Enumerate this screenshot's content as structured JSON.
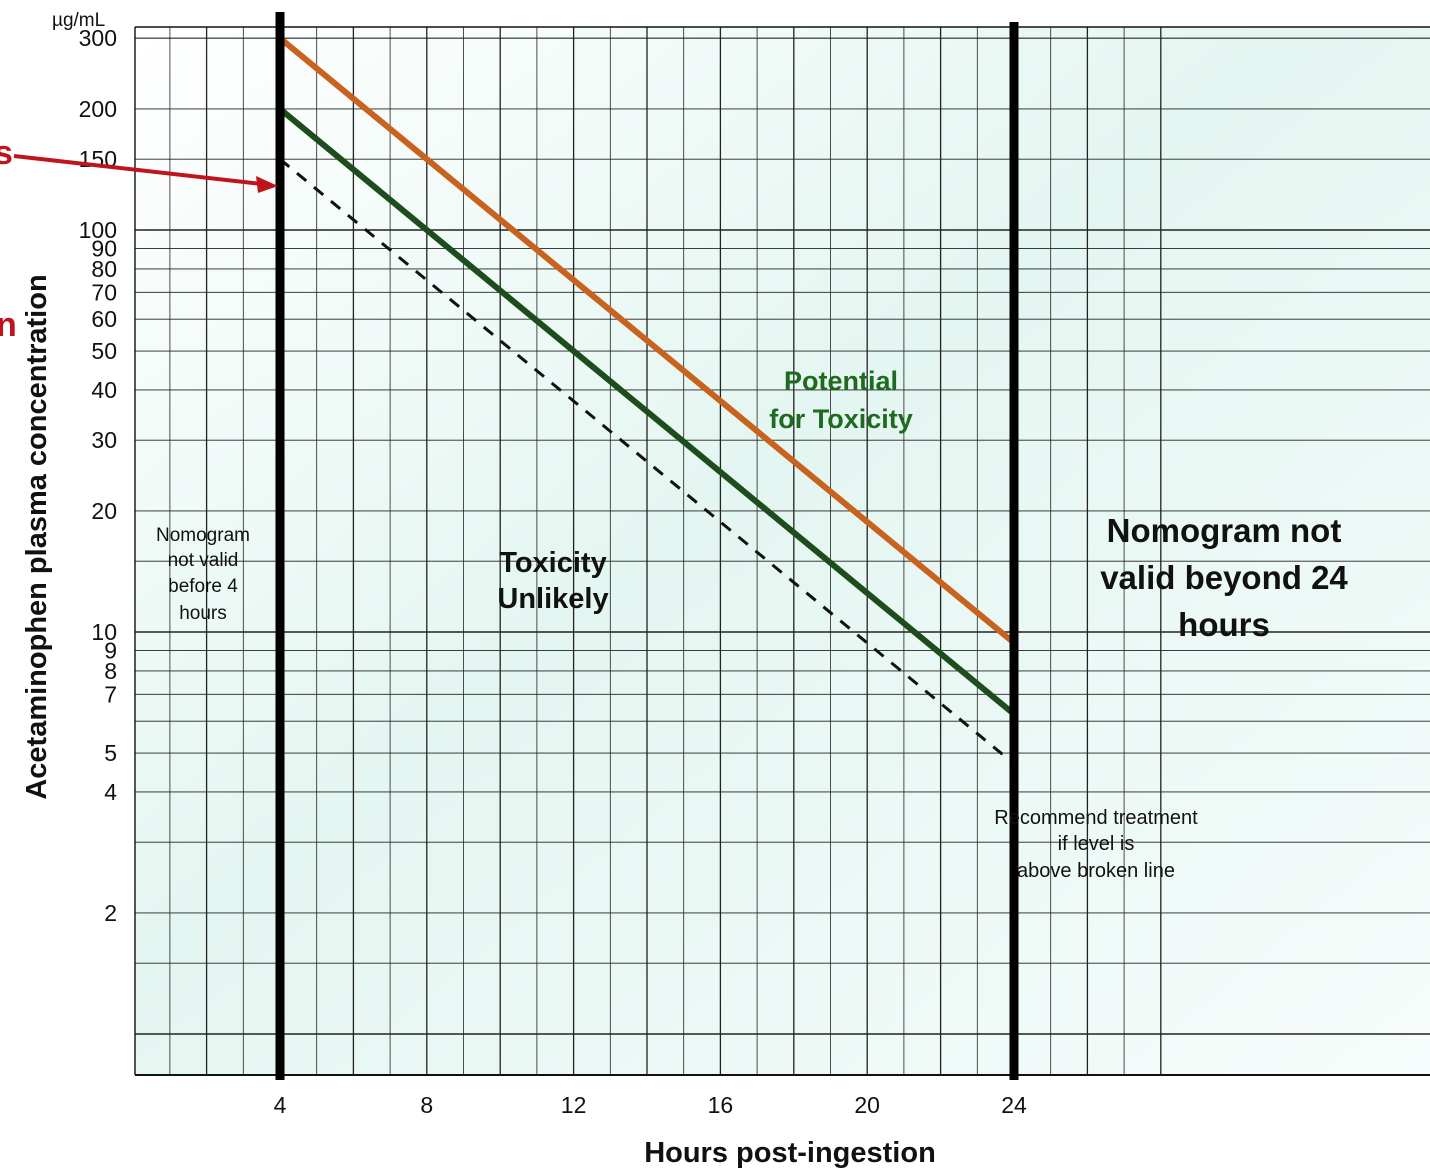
{
  "chart_data": {
    "type": "line",
    "title": "",
    "xlabel": "Hours post-ingestion",
    "ylabel": "Acetaminophen plasma concentration",
    "y_unit": "µg/mL",
    "y_scale": "log",
    "xlim": [
      0,
      30
    ],
    "ylim": [
      1,
      500
    ],
    "grid": true,
    "x_ticks": [
      "4",
      "8",
      "12",
      "16",
      "20",
      "24"
    ],
    "y_ticks": [
      "300",
      "200",
      "150",
      "100",
      "90",
      "80",
      "70",
      "60",
      "50",
      "40",
      "30",
      "20",
      "10",
      "9",
      "8",
      "7",
      "5",
      "4",
      "2"
    ],
    "series": [
      {
        "name": "",
        "color": "#c8621e",
        "style": "solid",
        "x": [
          4,
          24
        ],
        "y": [
          300,
          9.4
        ]
      },
      {
        "name": "",
        "color": "#1d4d1d",
        "style": "solid",
        "x": [
          4,
          24
        ],
        "y": [
          200,
          6.25
        ]
      },
      {
        "name": "",
        "color": "#111111",
        "style": "dashed",
        "x": [
          4,
          24
        ],
        "y": [
          150,
          4.7
        ]
      }
    ],
    "vertical_lines": [
      4,
      24
    ],
    "annotations": {
      "before_4": [
        "Nomogram",
        "not valid",
        "before 4",
        "hours"
      ],
      "toxicity_unlikely": [
        "Toxicity",
        "Unlikely"
      ],
      "potential_toxicity": [
        "Potential",
        "for Toxicity"
      ],
      "beyond_24": [
        "Nomogram not",
        "valid beyond 24",
        "hours"
      ],
      "recommend": [
        "Recommend treatment",
        "if level is",
        "above broken line"
      ]
    },
    "clipped_labels": [
      "s",
      "n"
    ]
  }
}
